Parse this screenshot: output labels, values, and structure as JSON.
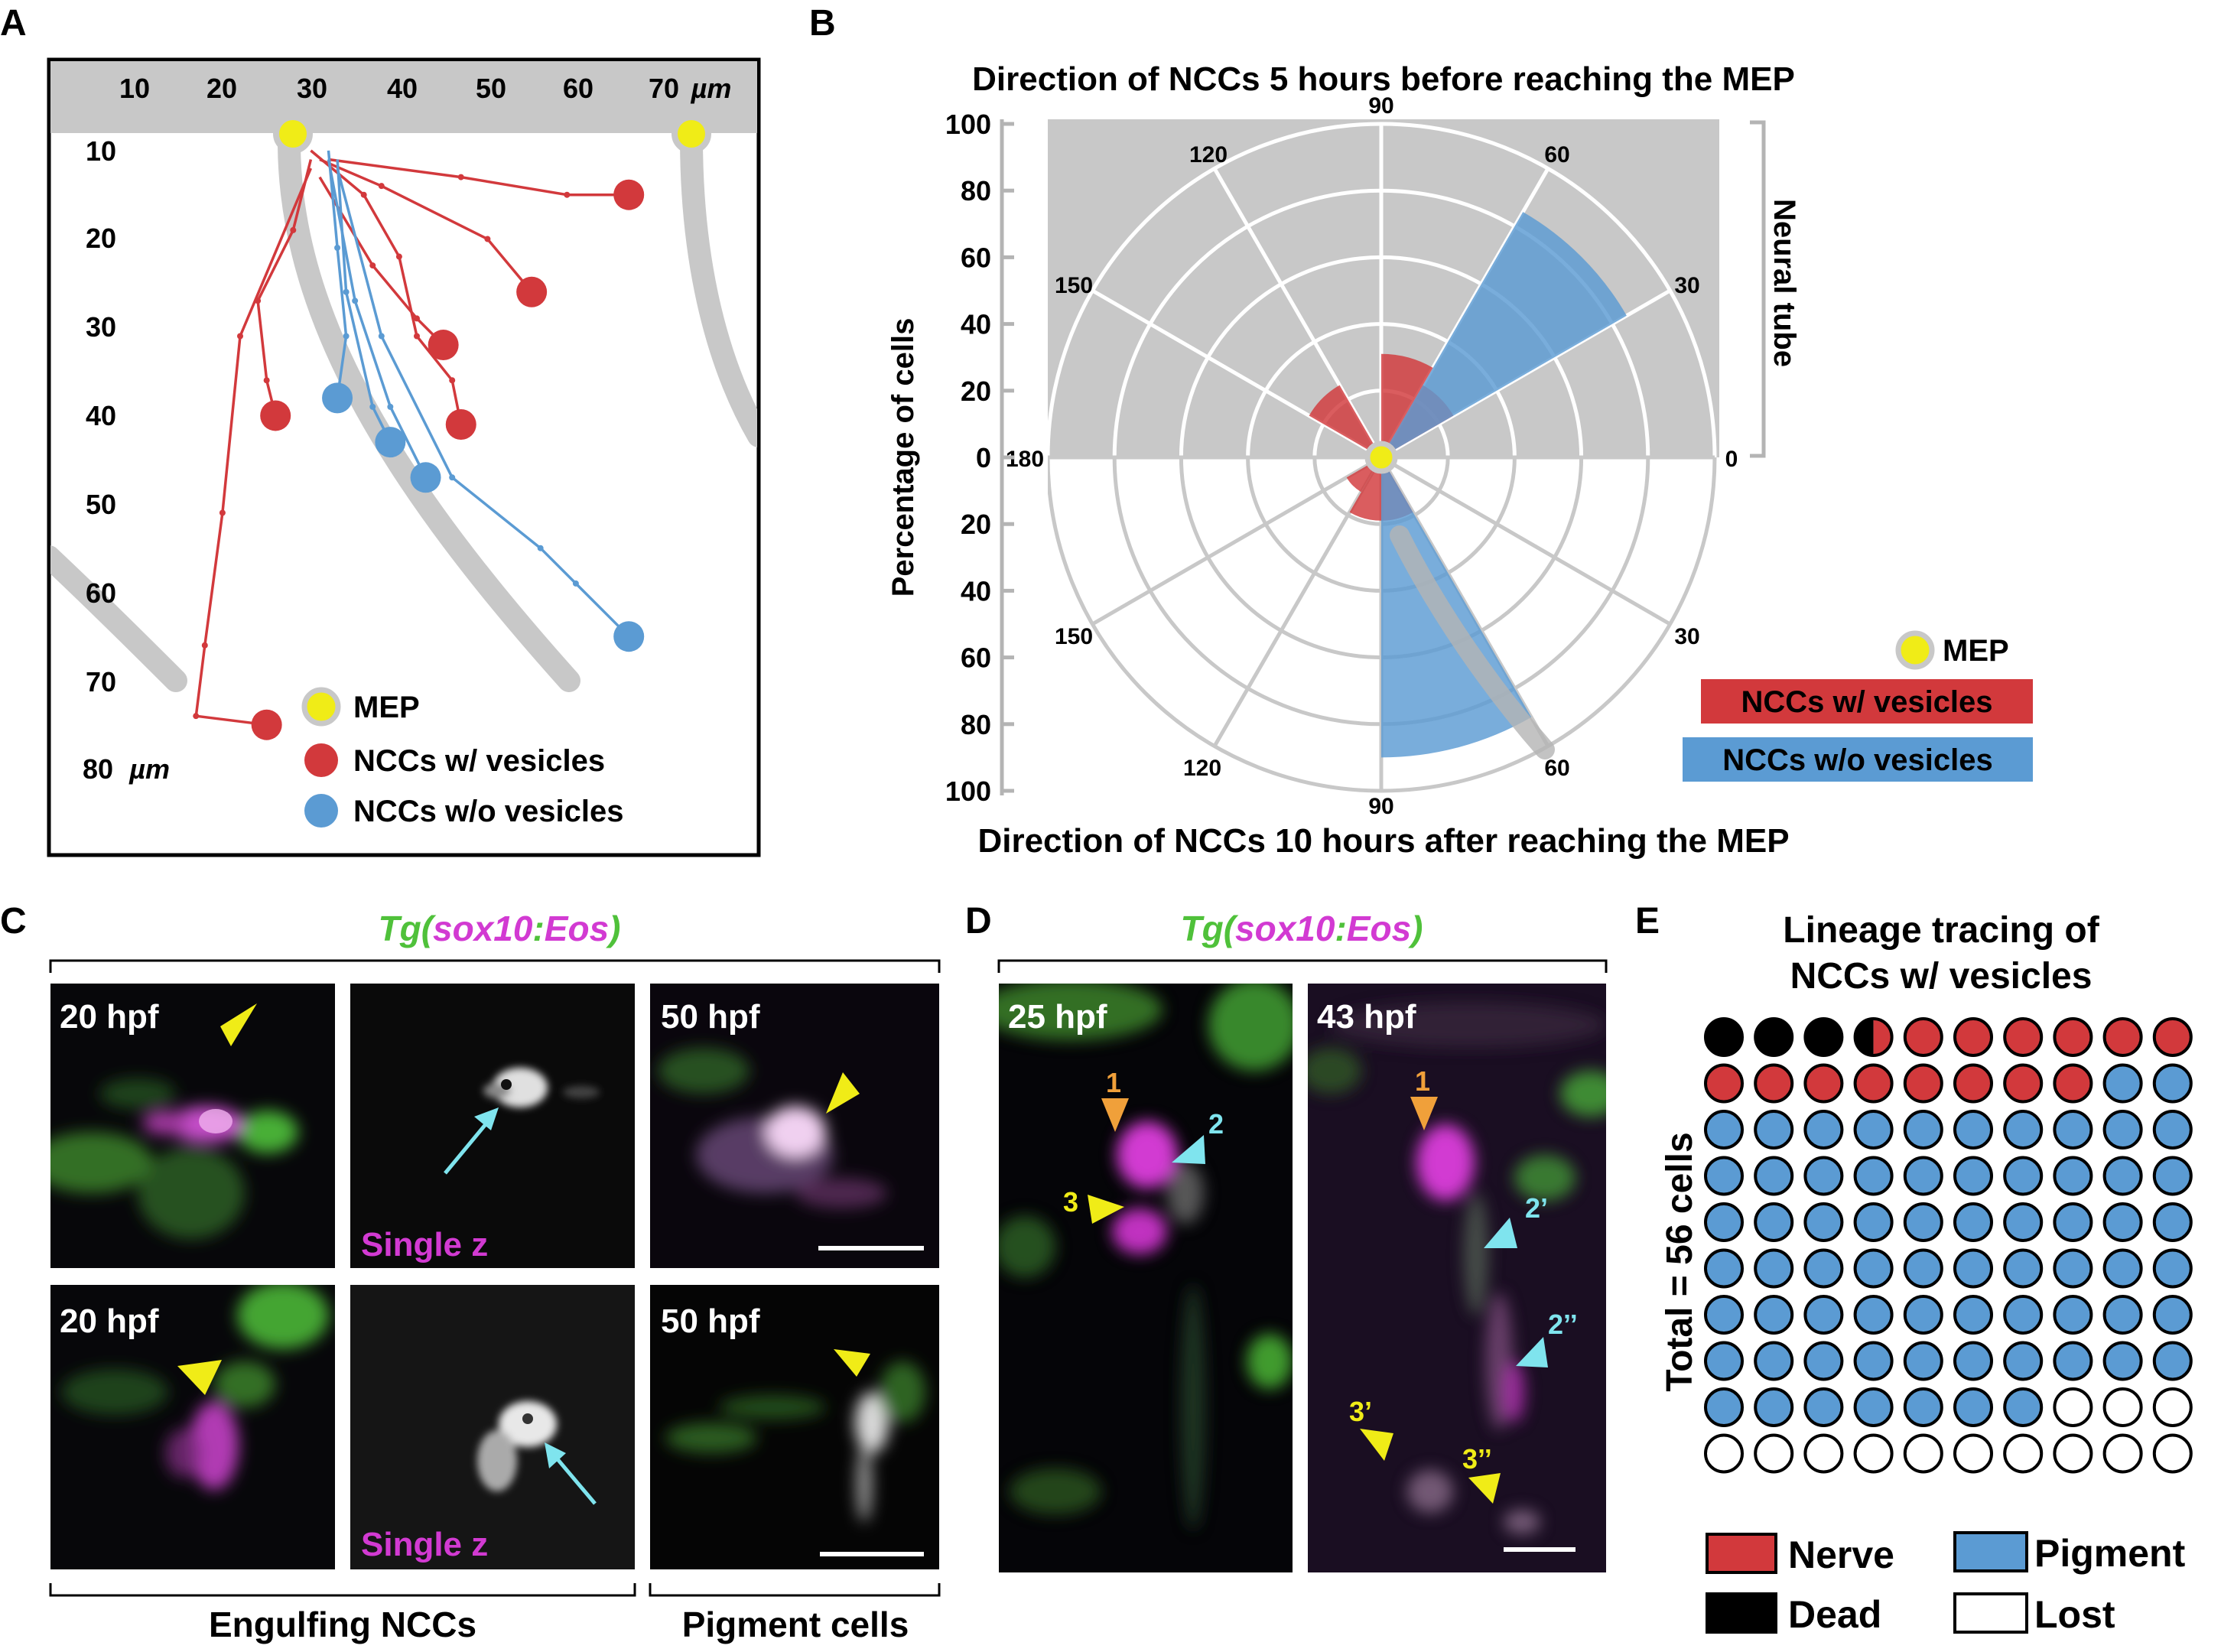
{
  "panel_letters": [
    "A",
    "B",
    "C",
    "D",
    "E"
  ],
  "colors": {
    "nerve_red": "#d2393c",
    "pigment_blue": "#5b9bd3",
    "mep_yellow": "#f0ec17",
    "neural_tube_gray": "#c8c8c8",
    "sox10_green": "#4fc13a",
    "eos_magenta": "#d23ad2",
    "arrow_cyan": "#7fe4ee",
    "arrow_orange": "#f0a03a"
  },
  "panelA": {
    "x_ticks": [
      "10",
      "20",
      "30",
      "40",
      "50",
      "60",
      "70"
    ],
    "x_unit": "µm",
    "y_ticks": [
      "10",
      "20",
      "30",
      "40",
      "50",
      "60",
      "70",
      "80"
    ],
    "y_unit": "µm",
    "legend": [
      {
        "label": "MEP",
        "color": "#f0ec17"
      },
      {
        "label": "NCCs w/ vesicles",
        "color": "#d2393c"
      },
      {
        "label": "NCCs w/o vesicles",
        "color": "#5b9bd3"
      }
    ],
    "red_tracks": [
      [
        [
          28,
          10
        ],
        [
          26,
          18
        ],
        [
          22,
          26
        ],
        [
          23,
          35
        ],
        [
          24,
          39
        ]
      ],
      [
        [
          28,
          9
        ],
        [
          34,
          14
        ],
        [
          38,
          21
        ],
        [
          40,
          30
        ],
        [
          44,
          35
        ],
        [
          45,
          40
        ]
      ],
      [
        [
          29,
          10
        ],
        [
          36,
          13
        ],
        [
          48,
          19
        ],
        [
          53,
          25
        ]
      ],
      [
        [
          30,
          10
        ],
        [
          45,
          12
        ],
        [
          57,
          14
        ],
        [
          64,
          14
        ]
      ],
      [
        [
          28,
          11
        ],
        [
          20,
          30
        ],
        [
          18,
          50
        ],
        [
          16,
          65
        ],
        [
          15,
          73
        ],
        [
          23,
          74
        ]
      ],
      [
        [
          29,
          12
        ],
        [
          35,
          22
        ],
        [
          40,
          28
        ],
        [
          43,
          31
        ]
      ]
    ],
    "blue_tracks": [
      [
        [
          30,
          9
        ],
        [
          31,
          20
        ],
        [
          32,
          30
        ],
        [
          31,
          37
        ]
      ],
      [
        [
          31,
          10
        ],
        [
          32,
          25
        ],
        [
          35,
          38
        ],
        [
          37,
          42
        ]
      ],
      [
        [
          30,
          10
        ],
        [
          33,
          26
        ],
        [
          37,
          38
        ],
        [
          41,
          46
        ]
      ],
      [
        [
          31,
          11
        ],
        [
          36,
          30
        ],
        [
          44,
          46
        ],
        [
          54,
          54
        ],
        [
          58,
          58
        ],
        [
          64,
          64
        ]
      ]
    ]
  },
  "chart_data": [
    {
      "type": "bar",
      "subtype": "polar-histogram",
      "title": "Direction of NCCs 5 hours before reaching the MEP",
      "ylabel": "Percentage of cells",
      "angle_labels": [
        "90",
        "120",
        "150",
        "180",
        "60",
        "30",
        "0"
      ],
      "radial_ticks": [
        "0",
        "20",
        "40",
        "60",
        "80",
        "100"
      ],
      "rlim": [
        0,
        100
      ],
      "region_label": "Neural tube",
      "series": [
        {
          "name": "NCCs w/ vesicles",
          "sectors": [
            {
              "from": 30,
              "to": 60,
              "value": 25
            },
            {
              "from": 60,
              "to": 90,
              "value": 31
            },
            {
              "from": 120,
              "to": 150,
              "value": 25
            }
          ]
        },
        {
          "name": "NCCs w/o vesicles",
          "sectors": [
            {
              "from": 30,
              "to": 60,
              "value": 85
            }
          ]
        }
      ]
    },
    {
      "type": "bar",
      "subtype": "polar-histogram",
      "title": "Direction of NCCs 10 hours after reaching the MEP",
      "ylabel": "Percentage of cells",
      "angle_labels": [
        "150",
        "30",
        "120",
        "60",
        "90"
      ],
      "radial_ticks": [
        "0",
        "20",
        "40",
        "60",
        "80",
        "100"
      ],
      "rlim": [
        0,
        100
      ],
      "series": [
        {
          "name": "NCCs w/ vesicles",
          "sectors": [
            {
              "from": 60,
              "to": 90,
              "value": 19
            },
            {
              "from": 90,
              "to": 120,
              "value": 19
            },
            {
              "from": 120,
              "to": 150,
              "value": 12
            }
          ]
        },
        {
          "name": "NCCs w/o vesicles",
          "sectors": [
            {
              "from": 60,
              "to": 90,
              "value": 90
            }
          ]
        }
      ]
    }
  ],
  "panelB": {
    "legend": [
      {
        "label": "MEP",
        "color": "#f0ec17"
      },
      {
        "label": "NCCs w/ vesicles",
        "color": "#d2393c"
      },
      {
        "label": "NCCs w/o vesicles",
        "color": "#5b9bd3"
      }
    ]
  },
  "panelC": {
    "construct": {
      "tg": "Tg",
      "open": "(",
      "gene": "sox10",
      "colon": ":",
      "reporter": "Eos",
      "close": ")"
    },
    "tiles": [
      {
        "label": "20 hpf",
        "kind": "merge"
      },
      {
        "label": "Single z",
        "kind": "gray"
      },
      {
        "label": "50 hpf",
        "kind": "merge"
      },
      {
        "label": "20 hpf",
        "kind": "merge"
      },
      {
        "label": "Single z",
        "kind": "gray"
      },
      {
        "label": "50 hpf",
        "kind": "merge"
      }
    ],
    "bottom_labels": [
      "Engulfing NCCs",
      "Pigment cells"
    ]
  },
  "panelD": {
    "construct": {
      "tg": "Tg",
      "open": "(",
      "gene": "sox10",
      "colon": ":",
      "reporter": "Eos",
      "close": ")"
    },
    "tiles": [
      {
        "label": "25 hpf"
      },
      {
        "label": "43 hpf"
      }
    ],
    "markers_left": [
      "1",
      "2",
      "3"
    ],
    "markers_right": [
      "1",
      "2’",
      "2’’",
      "3’",
      "3’’"
    ]
  },
  "chart_data_E": {
    "title_line1": "Lineage tracing of",
    "title_line2": "NCCs w/ vesicles",
    "ylabel": "Total = 56 cells",
    "counts": {
      "Dead": 3,
      "Dead/Nerve": 1,
      "Nerve": 14,
      "Pigment": 69,
      "Lost": 13
    },
    "legend": [
      {
        "label": "Nerve",
        "color": "#d2393c"
      },
      {
        "label": "Pigment",
        "color": "#5b9bd3"
      },
      {
        "label": "Dead",
        "color": "#000000"
      },
      {
        "label": "Lost",
        "color": "#ffffff"
      }
    ]
  }
}
